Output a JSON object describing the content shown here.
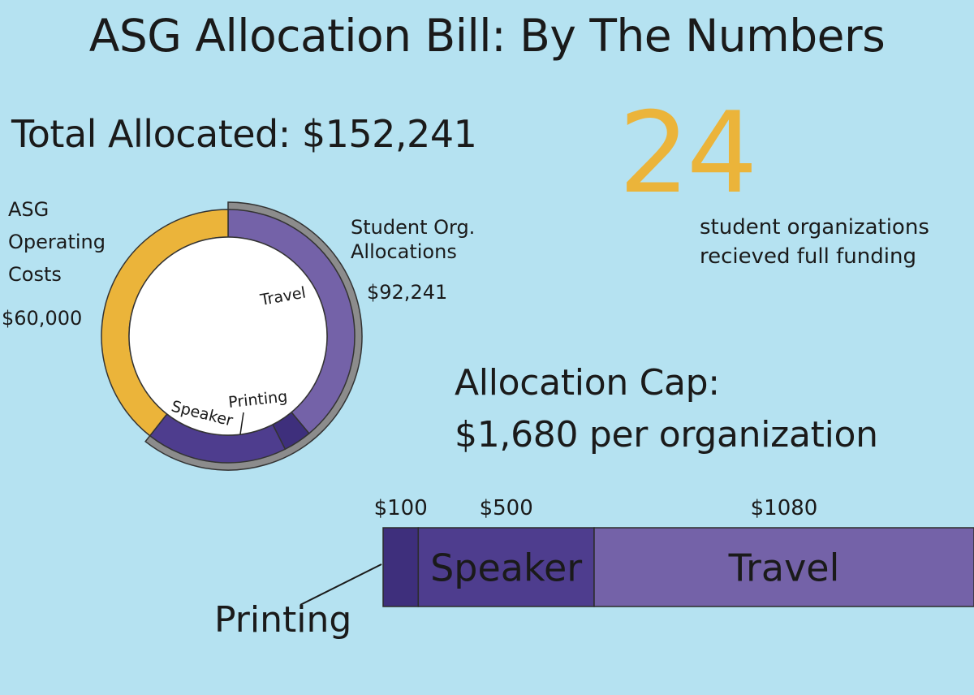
{
  "title": "ASG Allocation Bill: By The Numbers",
  "total_allocated": "Total Allocated: $152,241",
  "full_funding": {
    "number": "24",
    "caption_line1": "student organizations",
    "caption_line2": "recieved full funding"
  },
  "allocation_cap": {
    "line1": "Allocation Cap:",
    "line2": "$1,680 per organization"
  },
  "colors": {
    "operating": "#ebb43a",
    "travel": "#7462a8",
    "speaker": "#4e3d8e",
    "printing": "#3e2f7c",
    "outer_ring": "#8c8c8c",
    "center": "#ffffff"
  },
  "chart_data": [
    {
      "type": "pie",
      "title": "",
      "slices": [
        {
          "name": "Student Org. Allocations",
          "value": 92241,
          "value_label": "$92,241"
        },
        {
          "name": "ASG Operating Costs",
          "value": 60000,
          "value_label": "$60,000"
        }
      ],
      "sub_slices": [
        {
          "name": "Travel",
          "value": 1080
        },
        {
          "name": "Printing",
          "value": 100
        },
        {
          "name": "Speaker",
          "value": 500
        }
      ],
      "labels": {
        "operating_line1": "ASG",
        "operating_line2": "Operating",
        "operating_line3": "Costs",
        "student_line1": "Student Org.",
        "student_line2": "Allocations"
      }
    },
    {
      "type": "bar",
      "title": "",
      "orientation": "horizontal-stacked",
      "categories": [
        "Printing",
        "Speaker",
        "Travel"
      ],
      "values": [
        100,
        500,
        1080
      ],
      "value_labels": [
        "$100",
        "$500",
        "$1080"
      ]
    }
  ]
}
